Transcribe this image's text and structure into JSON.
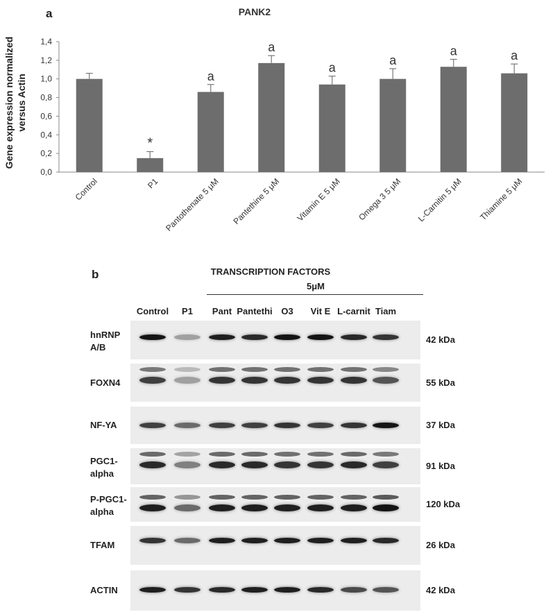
{
  "panel_a_letter": "a",
  "panel_b_letter": "b",
  "chart_data": {
    "type": "bar",
    "title": "PANK2",
    "ylabel_line1": "Gene expression normalized",
    "ylabel_line2": "versus Actin",
    "xlabel": "",
    "categories": [
      "Control",
      "P1",
      "Pantothenate 5 μM",
      "Pantethine 5 μM",
      "Vitamin E 5 μM",
      "Omega 3 5 μM",
      "L-Carnitin 5 μM",
      "Thiamine 5 μM"
    ],
    "values": [
      1.0,
      0.15,
      0.86,
      1.17,
      0.94,
      1.0,
      1.13,
      1.06
    ],
    "errors": [
      0.06,
      0.07,
      0.08,
      0.08,
      0.09,
      0.11,
      0.08,
      0.1
    ],
    "annotations": [
      "",
      "*",
      "a",
      "a",
      "a",
      "a",
      "a",
      "a"
    ],
    "ylim": [
      0,
      1.4
    ],
    "yticks": [
      "0,0",
      "0,2",
      "0,4",
      "0,6",
      "0,8",
      "1,0",
      "1,2",
      "1,4"
    ],
    "bar_color": "#6d6d6d",
    "grid": false
  },
  "blot": {
    "title": "TRANSCRIPTION FACTORS",
    "concentration": "5μM",
    "lanes": [
      "Control",
      "P1",
      "Pant",
      "Pantethi",
      "O3",
      "Vit E",
      "L-carnit",
      "Tiam"
    ],
    "rows": [
      {
        "label": "hnRNP A/B",
        "kda": "42 kDa"
      },
      {
        "label": "FOXN4",
        "kda": "55 kDa"
      },
      {
        "label": "NF-YA",
        "kda": "37 kDa"
      },
      {
        "label": "PGC1-alpha",
        "kda": "91 kDa"
      },
      {
        "label": "P-PGC1-alpha",
        "kda": "120 kDa"
      },
      {
        "label": "TFAM",
        "kda": "26 kDa"
      },
      {
        "label": "ACTIN",
        "kda": "42 kDa"
      }
    ]
  }
}
